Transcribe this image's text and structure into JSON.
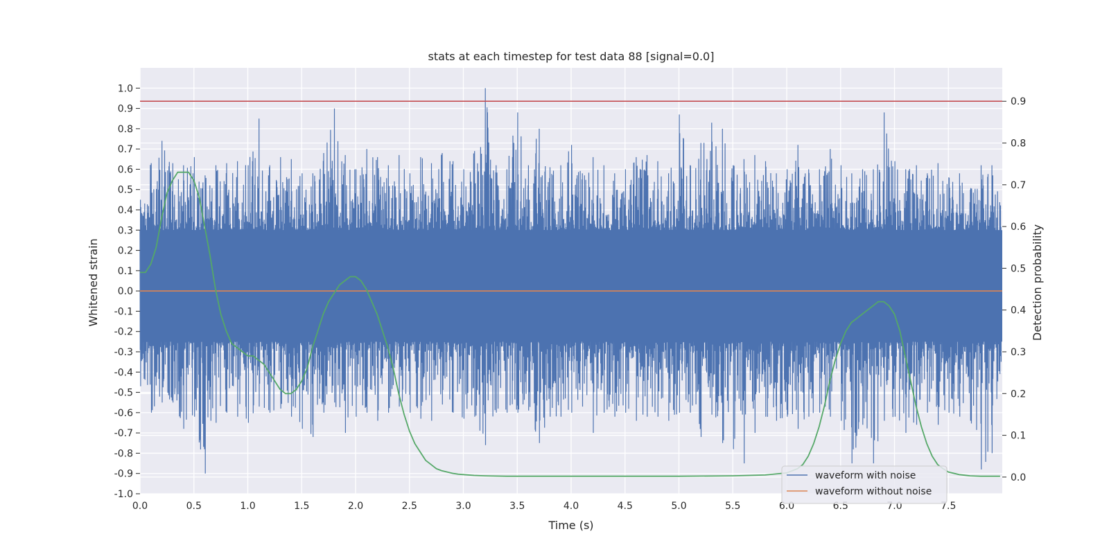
{
  "chart_data": {
    "type": "line",
    "title": "stats at each timestep for test data 88 [signal=0.0]",
    "xlabel": "Time (s)",
    "ylabel": "Whitened strain",
    "y2label": "Detection probability",
    "xlim": [
      0.0,
      8.0
    ],
    "ylim": [
      -1.0,
      1.1
    ],
    "y2lim": [
      -0.04,
      0.98
    ],
    "x_ticks": [
      "0.0",
      "0.5",
      "1.0",
      "1.5",
      "2.0",
      "2.5",
      "3.0",
      "3.5",
      "4.0",
      "4.5",
      "5.0",
      "5.5",
      "6.0",
      "6.5",
      "7.0",
      "7.5"
    ],
    "y_ticks": [
      "-1.0",
      "-0.9",
      "-0.8",
      "-0.7",
      "-0.6",
      "-0.5",
      "-0.4",
      "-0.3",
      "-0.2",
      "-0.1",
      "0.0",
      "0.1",
      "0.2",
      "0.3",
      "0.4",
      "0.5",
      "0.6",
      "0.7",
      "0.8",
      "0.9",
      "1.0"
    ],
    "y2_ticks": [
      "0.0",
      "0.1",
      "0.2",
      "0.3",
      "0.4",
      "0.5",
      "0.6",
      "0.7",
      "0.8",
      "0.9"
    ],
    "threshold": {
      "value": 0.9,
      "axis": "right",
      "color": "#c44e52"
    },
    "noise_waveform_envelope": {
      "x": [
        0.0,
        0.1,
        0.2,
        0.3,
        0.4,
        0.5,
        0.6,
        0.7,
        0.8,
        0.9,
        1.0,
        1.1,
        1.2,
        1.3,
        1.4,
        1.5,
        1.6,
        1.7,
        1.8,
        1.9,
        2.0,
        2.1,
        2.2,
        2.3,
        2.4,
        2.5,
        2.6,
        2.7,
        2.8,
        2.9,
        3.0,
        3.1,
        3.2,
        3.3,
        3.4,
        3.5,
        3.6,
        3.7,
        3.8,
        3.9,
        4.0,
        4.1,
        4.2,
        4.3,
        4.4,
        4.5,
        4.6,
        4.7,
        4.8,
        4.9,
        5.0,
        5.1,
        5.2,
        5.3,
        5.4,
        5.5,
        5.6,
        5.7,
        5.8,
        5.9,
        6.0,
        6.1,
        6.2,
        6.3,
        6.4,
        6.5,
        6.6,
        6.7,
        6.8,
        6.9,
        7.0,
        7.1,
        7.2,
        7.3,
        7.4,
        7.5,
        7.6,
        7.7,
        7.8,
        7.9,
        8.0
      ],
      "max": [
        0.45,
        0.63,
        0.74,
        0.63,
        0.62,
        0.66,
        0.57,
        0.62,
        0.63,
        0.64,
        0.62,
        0.85,
        0.62,
        0.66,
        0.65,
        0.58,
        0.58,
        0.68,
        0.9,
        0.67,
        0.6,
        0.7,
        0.66,
        0.62,
        0.67,
        0.58,
        0.66,
        0.63,
        0.68,
        0.64,
        0.6,
        0.69,
        1.0,
        0.62,
        0.6,
        0.88,
        0.62,
        0.8,
        0.61,
        0.62,
        0.72,
        0.58,
        0.66,
        0.62,
        0.58,
        0.6,
        0.66,
        0.67,
        0.64,
        0.58,
        0.87,
        0.62,
        0.73,
        0.83,
        0.8,
        0.62,
        0.65,
        0.67,
        0.64,
        0.58,
        0.6,
        0.72,
        0.6,
        0.6,
        0.7,
        0.62,
        0.58,
        0.6,
        0.6,
        0.88,
        0.64,
        0.6,
        0.62,
        0.58,
        0.63,
        0.56,
        0.58,
        0.5,
        0.62,
        0.62,
        0.6
      ],
      "min": [
        -0.47,
        -0.6,
        -0.55,
        -0.55,
        -0.68,
        -0.62,
        -0.9,
        -0.65,
        -0.6,
        -0.62,
        -0.65,
        -0.57,
        -0.6,
        -0.58,
        -0.62,
        -0.68,
        -0.72,
        -0.6,
        -0.55,
        -0.7,
        -0.62,
        -0.6,
        -0.64,
        -0.6,
        -0.57,
        -0.6,
        -0.63,
        -0.64,
        -0.56,
        -0.6,
        -0.63,
        -0.62,
        -0.76,
        -0.6,
        -0.6,
        -0.6,
        -0.59,
        -0.75,
        -0.62,
        -0.62,
        -0.6,
        -0.57,
        -0.7,
        -0.6,
        -0.62,
        -0.6,
        -0.64,
        -0.62,
        -0.62,
        -0.64,
        -0.6,
        -0.6,
        -0.72,
        -0.61,
        -0.75,
        -0.78,
        -0.85,
        -0.7,
        -0.62,
        -0.64,
        -0.62,
        -0.68,
        -0.62,
        -0.6,
        -0.62,
        -0.64,
        -0.85,
        -0.66,
        -0.85,
        -0.64,
        -0.62,
        -0.7,
        -0.66,
        -0.6,
        -0.66,
        -0.6,
        -0.62,
        -0.64,
        -0.88,
        -0.8,
        -0.6
      ]
    },
    "series": [
      {
        "name": "waveform with noise",
        "color": "#4c72b0",
        "axis": "left"
      },
      {
        "name": "waveform without noise",
        "color": "#dd8452",
        "axis": "left",
        "x": [
          0.0,
          8.0
        ],
        "y": [
          0.0,
          0.0
        ]
      },
      {
        "color": "#55a868",
        "axis": "right",
        "x": [
          0.0,
          0.05,
          0.1,
          0.15,
          0.2,
          0.25,
          0.3,
          0.35,
          0.4,
          0.45,
          0.5,
          0.55,
          0.6,
          0.65,
          0.7,
          0.75,
          0.8,
          0.85,
          0.9,
          0.95,
          1.0,
          1.05,
          1.1,
          1.15,
          1.2,
          1.25,
          1.3,
          1.35,
          1.4,
          1.45,
          1.5,
          1.55,
          1.6,
          1.65,
          1.7,
          1.75,
          1.8,
          1.85,
          1.9,
          1.95,
          2.0,
          2.05,
          2.1,
          2.15,
          2.2,
          2.25,
          2.3,
          2.35,
          2.4,
          2.45,
          2.5,
          2.55,
          2.6,
          2.65,
          2.7,
          2.75,
          2.8,
          2.85,
          2.9,
          2.95,
          3.0,
          3.1,
          3.2,
          3.4,
          3.6,
          4.0,
          4.5,
          5.0,
          5.5,
          5.8,
          6.0,
          6.1,
          6.15,
          6.2,
          6.25,
          6.3,
          6.35,
          6.4,
          6.45,
          6.5,
          6.55,
          6.6,
          6.65,
          6.7,
          6.75,
          6.8,
          6.85,
          6.9,
          6.95,
          7.0,
          7.05,
          7.1,
          7.15,
          7.2,
          7.25,
          7.3,
          7.35,
          7.4,
          7.45,
          7.5,
          7.6,
          7.7,
          7.8,
          7.9,
          7.98
        ],
        "y": [
          0.49,
          0.49,
          0.51,
          0.55,
          0.62,
          0.68,
          0.71,
          0.73,
          0.73,
          0.73,
          0.71,
          0.67,
          0.6,
          0.53,
          0.45,
          0.39,
          0.35,
          0.32,
          0.31,
          0.3,
          0.29,
          0.29,
          0.28,
          0.27,
          0.25,
          0.23,
          0.21,
          0.2,
          0.2,
          0.21,
          0.23,
          0.26,
          0.31,
          0.35,
          0.39,
          0.42,
          0.44,
          0.46,
          0.47,
          0.48,
          0.48,
          0.47,
          0.45,
          0.42,
          0.39,
          0.35,
          0.31,
          0.26,
          0.2,
          0.15,
          0.11,
          0.08,
          0.06,
          0.04,
          0.03,
          0.02,
          0.015,
          0.012,
          0.009,
          0.007,
          0.006,
          0.004,
          0.003,
          0.002,
          0.002,
          0.002,
          0.002,
          0.002,
          0.003,
          0.005,
          0.01,
          0.02,
          0.03,
          0.05,
          0.08,
          0.12,
          0.17,
          0.23,
          0.28,
          0.32,
          0.35,
          0.37,
          0.38,
          0.39,
          0.4,
          0.41,
          0.42,
          0.42,
          0.41,
          0.39,
          0.35,
          0.29,
          0.23,
          0.17,
          0.12,
          0.08,
          0.05,
          0.03,
          0.02,
          0.012,
          0.006,
          0.003,
          0.002,
          0.002,
          0.002
        ]
      }
    ],
    "legend_location": "lower-right",
    "grid": true,
    "style": {
      "plot_bg": "#eaeaf2",
      "grid_color": "#ffffff"
    }
  }
}
